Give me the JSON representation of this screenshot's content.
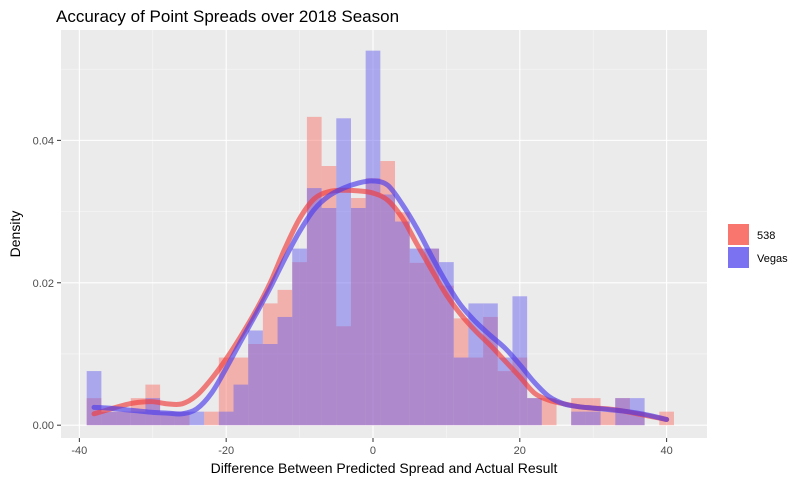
{
  "chart_data": {
    "type": "histogram-density",
    "title": "Accuracy of Point Spreads over 2018 Season",
    "xlabel": "Difference Between Predicted Spread and Actual Result",
    "ylabel": "Density",
    "xlim": [
      -42.5,
      45.5
    ],
    "ylim": [
      -0.0018,
      0.0555
    ],
    "x_ticks": [
      -40,
      -20,
      0,
      20,
      40
    ],
    "y_ticks": [
      0.0,
      0.02,
      0.04
    ],
    "y_tick_labels": [
      "0.00",
      "0.02",
      "0.04"
    ],
    "grid": true,
    "legend_position": "right",
    "bin_width": 2,
    "bin_starts": [
      -39,
      -37,
      -35,
      -33,
      -31,
      -29,
      -27,
      -25,
      -23,
      -21,
      -19,
      -17,
      -15,
      -13,
      -11,
      -9,
      -7,
      -5,
      -3,
      -1,
      1,
      3,
      5,
      7,
      9,
      11,
      13,
      15,
      17,
      19,
      21,
      23,
      25,
      27,
      29,
      31,
      33,
      35,
      37,
      39
    ],
    "series": [
      {
        "name": "538",
        "color": "#f8766d",
        "hist": [
          0.0038,
          0.0019,
          0.0019,
          0.0038,
          0.0057,
          0.0019,
          0.0019,
          0.0,
          0.0019,
          0.0095,
          0.0095,
          0.0114,
          0.0171,
          0.019,
          0.0229,
          0.0433,
          0.0364,
          0.0139,
          0.0319,
          0.0347,
          0.0371,
          0.0299,
          0.0228,
          0.0248,
          0.0196,
          0.015,
          0.0095,
          0.0152,
          0.0076,
          0.0095,
          0.0038,
          0.0038,
          0.0,
          0.0038,
          0.0038,
          0.0019,
          0.0038,
          0.0019,
          0.0,
          0.0019
        ],
        "density": [
          [
            -38,
            0.0016
          ],
          [
            -36,
            0.0022
          ],
          [
            -34,
            0.0028
          ],
          [
            -32,
            0.0032
          ],
          [
            -30,
            0.0033
          ],
          [
            -28,
            0.003
          ],
          [
            -26,
            0.003
          ],
          [
            -24,
            0.0042
          ],
          [
            -22,
            0.0065
          ],
          [
            -20,
            0.0093
          ],
          [
            -18,
            0.0125
          ],
          [
            -16,
            0.016
          ],
          [
            -14,
            0.02
          ],
          [
            -12,
            0.0248
          ],
          [
            -10,
            0.029
          ],
          [
            -8,
            0.0318
          ],
          [
            -6,
            0.0328
          ],
          [
            -4,
            0.033
          ],
          [
            -2,
            0.0329
          ],
          [
            0,
            0.0326
          ],
          [
            2,
            0.0316
          ],
          [
            4,
            0.0291
          ],
          [
            6,
            0.0254
          ],
          [
            8,
            0.0218
          ],
          [
            10,
            0.0183
          ],
          [
            12,
            0.0155
          ],
          [
            14,
            0.0132
          ],
          [
            16,
            0.0112
          ],
          [
            18,
            0.009
          ],
          [
            20,
            0.0068
          ],
          [
            22,
            0.0045
          ],
          [
            24,
            0.0035
          ],
          [
            26,
            0.003
          ],
          [
            28,
            0.0026
          ],
          [
            30,
            0.0024
          ],
          [
            32,
            0.0023
          ],
          [
            34,
            0.002
          ],
          [
            36,
            0.0016
          ],
          [
            38,
            0.0012
          ],
          [
            40,
            0.0008
          ]
        ]
      },
      {
        "name": "Vegas",
        "color": "#6b63ee",
        "hist": [
          0.0076,
          0.0019,
          0.0019,
          0.0019,
          0.0038,
          0.0019,
          0.0019,
          0.0019,
          0.0,
          0.0019,
          0.0057,
          0.0133,
          0.0114,
          0.0152,
          0.0248,
          0.0333,
          0.0305,
          0.0431,
          0.0305,
          0.0526,
          0.0324,
          0.0286,
          0.0248,
          0.0248,
          0.0229,
          0.0095,
          0.0171,
          0.0171,
          0.0095,
          0.0181,
          0.0038,
          0.0,
          0.0,
          0.0019,
          0.0019,
          0.0,
          0.0038,
          0.0038,
          0.0,
          0.0
        ],
        "density": [
          [
            -38,
            0.0025
          ],
          [
            -36,
            0.0024
          ],
          [
            -34,
            0.0022
          ],
          [
            -32,
            0.002
          ],
          [
            -30,
            0.0018
          ],
          [
            -28,
            0.0017
          ],
          [
            -26,
            0.0016
          ],
          [
            -24,
            0.0023
          ],
          [
            -22,
            0.0045
          ],
          [
            -20,
            0.008
          ],
          [
            -18,
            0.0118
          ],
          [
            -16,
            0.0155
          ],
          [
            -14,
            0.0193
          ],
          [
            -12,
            0.0234
          ],
          [
            -10,
            0.0272
          ],
          [
            -8,
            0.0303
          ],
          [
            -6,
            0.0322
          ],
          [
            -4,
            0.0333
          ],
          [
            -2,
            0.034
          ],
          [
            0,
            0.0343
          ],
          [
            2,
            0.0337
          ],
          [
            4,
            0.031
          ],
          [
            6,
            0.0276
          ],
          [
            8,
            0.0237
          ],
          [
            10,
            0.02
          ],
          [
            12,
            0.0168
          ],
          [
            14,
            0.0145
          ],
          [
            16,
            0.0126
          ],
          [
            18,
            0.0108
          ],
          [
            20,
            0.0085
          ],
          [
            22,
            0.006
          ],
          [
            24,
            0.004
          ],
          [
            26,
            0.003
          ],
          [
            28,
            0.0026
          ],
          [
            30,
            0.0024
          ],
          [
            32,
            0.0022
          ],
          [
            34,
            0.002
          ],
          [
            36,
            0.0017
          ],
          [
            38,
            0.0013
          ],
          [
            40,
            0.0008
          ]
        ]
      }
    ]
  }
}
